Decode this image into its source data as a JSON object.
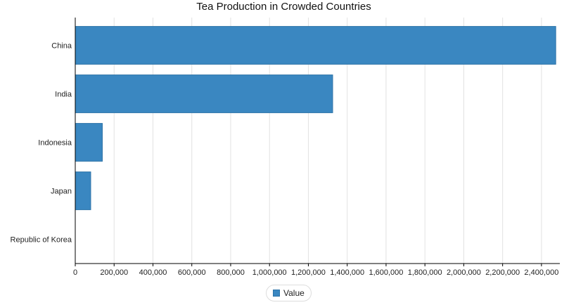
{
  "chart_data": {
    "type": "bar",
    "orientation": "horizontal",
    "title": "Tea Production in Crowded Countries",
    "categories": [
      "China",
      "India",
      "Indonesia",
      "Japan",
      "Republic of Korea"
    ],
    "series": [
      {
        "name": "Value",
        "values": [
          2473443,
          1325050,
          139362,
          79500,
          0
        ]
      }
    ],
    "xlim": [
      0,
      2480000
    ],
    "xticks": [
      0,
      200000,
      400000,
      600000,
      800000,
      1000000,
      1200000,
      1400000,
      1600000,
      1800000,
      2000000,
      2200000,
      2400000
    ],
    "xtick_labels": [
      "0",
      "200,000",
      "400,000",
      "600,000",
      "800,000",
      "1,000,000",
      "1,200,000",
      "1,400,000",
      "1,600,000",
      "1,800,000",
      "2,000,000",
      "2,200,000",
      "2,400,000"
    ],
    "xlabel": "",
    "ylabel": "",
    "grid": true,
    "legend": {
      "position": "bottom-center",
      "entries": [
        "Value"
      ]
    },
    "colors": {
      "bar": "#3a87c1",
      "bar_stroke": "#2e74a8",
      "grid": "#e2e2e2",
      "axis": "#000000"
    }
  }
}
